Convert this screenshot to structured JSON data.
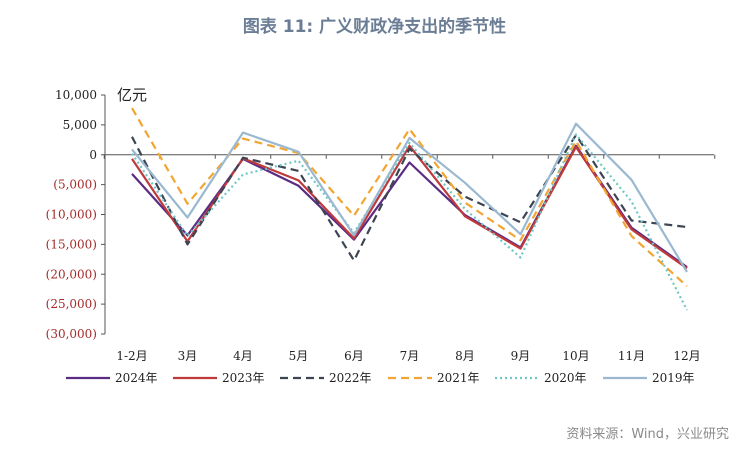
{
  "chart_data": {
    "type": "line",
    "title": "图表 11: 广义财政净支出的季节性",
    "unit_label": "亿元",
    "source": "资料来源：Wind，兴业研究",
    "categories": [
      "1-2月",
      "3月",
      "4月",
      "5月",
      "6月",
      "7月",
      "8月",
      "9月",
      "10月",
      "11月",
      "12月"
    ],
    "ylim": [
      -30000,
      10000
    ],
    "yticks": [
      10000,
      5000,
      0,
      -5000,
      -10000,
      -15000,
      -20000,
      -25000,
      -30000
    ],
    "ytick_labels": [
      "10,000",
      "5,000",
      "0",
      "(5,000)",
      "(10,000)",
      "(15,000)",
      "(20,000)",
      "(25,000)",
      "(30,000)"
    ],
    "legend_position": "bottom",
    "series": [
      {
        "name": "2024年",
        "color": "#5b2c83",
        "dash": "solid",
        "values": [
          -3200,
          -13500,
          -700,
          -5200,
          -14200,
          -1300,
          -10100,
          -15500,
          1500,
          -12200,
          -18800
        ]
      },
      {
        "name": "2023年",
        "color": "#c0393b",
        "dash": "solid",
        "values": [
          -700,
          -14500,
          -600,
          -4300,
          -14000,
          1500,
          -10300,
          -15700,
          1300,
          -12500,
          -19000
        ]
      },
      {
        "name": "2022年",
        "color": "#3d4452",
        "dash": "dashed",
        "values": [
          3000,
          -15000,
          -500,
          -2700,
          -17700,
          1000,
          -7000,
          -11300,
          3300,
          -11000,
          -12100
        ]
      },
      {
        "name": "2021年",
        "color": "#f2a531",
        "dash": "dashed",
        "values": [
          7800,
          -8200,
          2700,
          300,
          -10200,
          4300,
          -8000,
          -14300,
          2300,
          -13600,
          -22000
        ]
      },
      {
        "name": "2020年",
        "color": "#6fc7c6",
        "dash": "dotted",
        "values": [
          200,
          -13600,
          -3300,
          -1000,
          -13100,
          2000,
          -9100,
          -17200,
          3400,
          -7800,
          -26000
        ]
      },
      {
        "name": "2019年",
        "color": "#9ab9d1",
        "dash": "solid",
        "values": [
          900,
          -10500,
          3700,
          500,
          -13500,
          2800,
          -4700,
          -13300,
          5200,
          -4200,
          -19600
        ]
      }
    ]
  }
}
